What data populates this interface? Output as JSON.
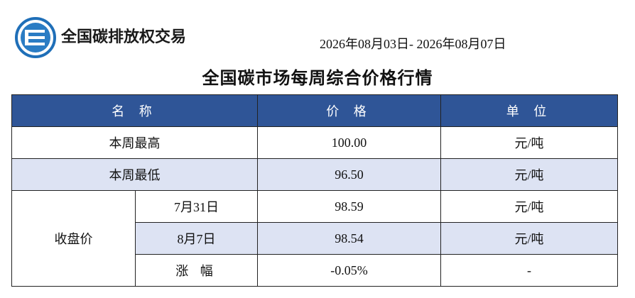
{
  "header": {
    "logo_text": "全国碳排放权交易",
    "date_range": "2026年08月03日- 2026年08月07日"
  },
  "title": "全国碳市场每周综合价格行情",
  "table": {
    "columns": [
      "名 称",
      "价 格",
      "单 位"
    ],
    "rows": [
      {
        "label": "本周最高",
        "price": "100.00",
        "unit": "元/吨"
      },
      {
        "label": "本周最低",
        "price": "96.50",
        "unit": "元/吨"
      }
    ],
    "closing": {
      "label": "收盘价",
      "rows": [
        {
          "date": "7月31日",
          "price": "98.59",
          "unit": "元/吨"
        },
        {
          "date": "8月7日",
          "price": "98.54",
          "unit": "元/吨"
        },
        {
          "date": "涨 幅",
          "price": "-0.05%",
          "unit": "-"
        }
      ]
    }
  }
}
